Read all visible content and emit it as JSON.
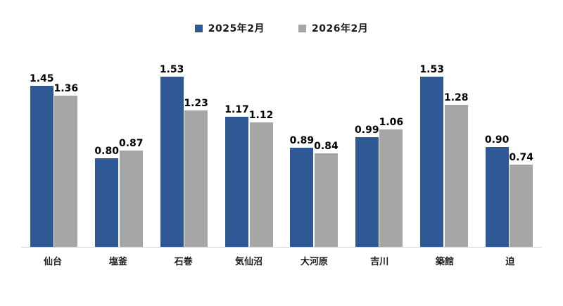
{
  "chart_data": {
    "type": "bar",
    "title": "",
    "xlabel": "",
    "ylabel": "",
    "categories": [
      "仙台",
      "塩釜",
      "石巻",
      "気仙沼",
      "大河原",
      "吉川",
      "築館",
      "迫"
    ],
    "series": [
      {
        "name": "2025年2月",
        "color": "#2E5994",
        "values": [
          1.45,
          0.8,
          1.53,
          1.17,
          0.89,
          0.99,
          1.53,
          0.9
        ]
      },
      {
        "name": "2026年2月",
        "color": "#A6A6A6",
        "values": [
          1.36,
          0.87,
          1.23,
          1.12,
          0.84,
          1.06,
          1.28,
          0.74
        ]
      }
    ],
    "value_label_decimals": 2,
    "legend_position": "top",
    "grid": false,
    "axis_line_color": "#D9D9D9",
    "background_color": "#FFFFFF",
    "ylim": [
      0,
      1.7
    ]
  }
}
